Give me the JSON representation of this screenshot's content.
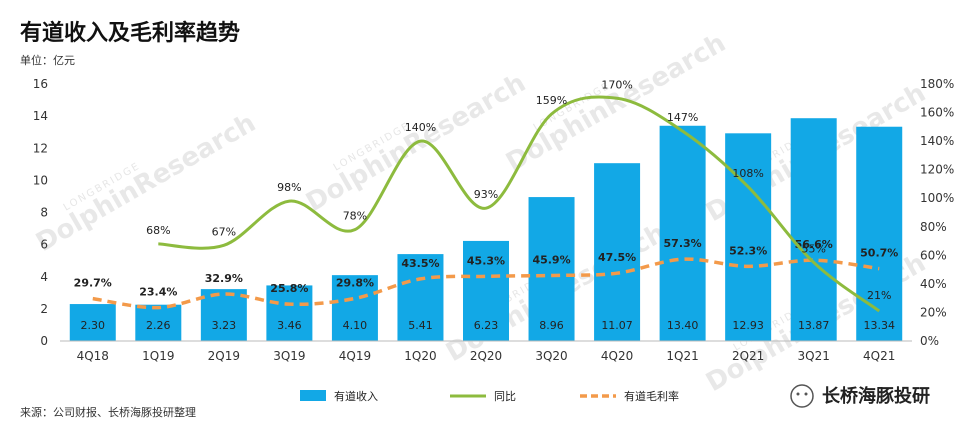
{
  "title": "有道收入及毛利率趋势",
  "unit": "单位：亿元",
  "source": "来源：公司财报、长桥海豚投研整理",
  "brand": "长桥海豚投研",
  "watermark": "DolphinResearch",
  "watermark_small": "LONGBRIDGE",
  "colors": {
    "bar": "#12a8e6",
    "yoy": "#8dbb3e",
    "margin": "#f39a4a"
  },
  "chart_data": {
    "type": "bar",
    "categories": [
      "4Q18",
      "1Q19",
      "2Q19",
      "3Q19",
      "4Q19",
      "1Q20",
      "2Q20",
      "3Q20",
      "4Q20",
      "1Q21",
      "2Q21",
      "3Q21",
      "4Q21"
    ],
    "y_left": {
      "min": 0,
      "max": 16,
      "ticks": [
        "0",
        "2",
        "4",
        "6",
        "8",
        "10",
        "12",
        "14",
        "16"
      ]
    },
    "y_right": {
      "min": 0,
      "max": 180,
      "ticks": [
        "0%",
        "20%",
        "40%",
        "60%",
        "80%",
        "100%",
        "120%",
        "140%",
        "160%",
        "180%"
      ]
    },
    "series": [
      {
        "name": "有道收入",
        "type": "bar",
        "axis": "left",
        "values": [
          2.3,
          2.26,
          3.23,
          3.46,
          4.1,
          5.41,
          6.23,
          8.96,
          11.07,
          13.4,
          12.93,
          13.87,
          13.34
        ],
        "labels": [
          "2.30",
          "2.26",
          "3.23",
          "3.46",
          "4.10",
          "5.41",
          "6.23",
          "8.96",
          "11.07",
          "13.40",
          "12.93",
          "13.87",
          "13.34"
        ]
      },
      {
        "name": "同比",
        "type": "line",
        "axis": "right",
        "values": [
          null,
          68,
          67,
          98,
          78,
          140,
          93,
          159,
          170,
          147,
          108,
          55,
          21
        ],
        "labels": [
          "",
          "68%",
          "67%",
          "98%",
          "78%",
          "140%",
          "93%",
          "159%",
          "170%",
          "147%",
          "108%",
          "55%",
          "21%"
        ]
      },
      {
        "name": "有道毛利率",
        "type": "line-dashed",
        "axis": "right",
        "values": [
          29.7,
          23.4,
          32.9,
          25.8,
          29.8,
          43.5,
          45.3,
          45.9,
          47.5,
          57.3,
          52.3,
          56.6,
          50.7
        ],
        "labels": [
          "29.7%",
          "23.4%",
          "32.9%",
          "25.8%",
          "29.8%",
          "43.5%",
          "45.3%",
          "45.9%",
          "47.5%",
          "57.3%",
          "52.3%",
          "56.6%",
          "50.7%"
        ]
      }
    ],
    "legend": {
      "position": "bottom"
    },
    "grid": false
  }
}
